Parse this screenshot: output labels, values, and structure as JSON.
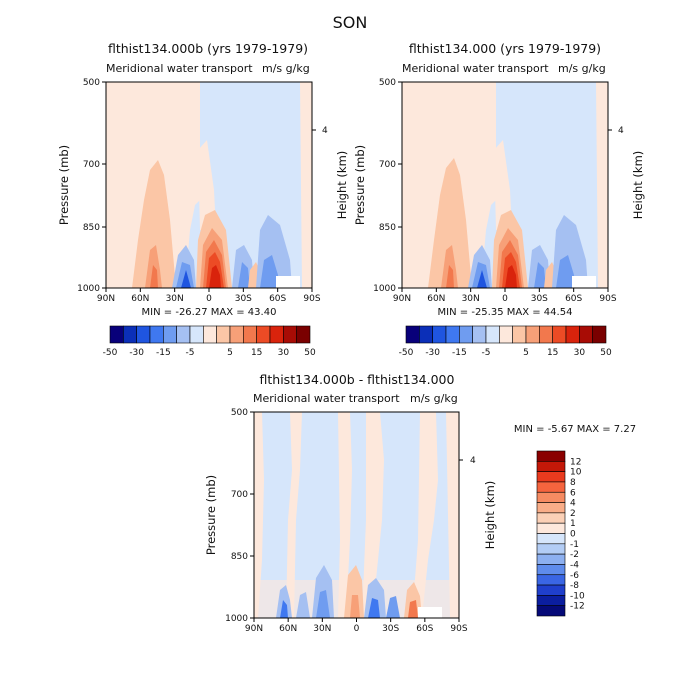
{
  "figure_title": "SON",
  "panels": [
    {
      "title": "flthist134.000b (yrs 1979-1979)",
      "subtitle": "Meridional water transport",
      "units": "m/s g/kg",
      "ylabel": "Pressure (mb)",
      "y2label": "Height (km)",
      "stats": "MIN = -26.27   MAX = 43.40"
    },
    {
      "title": "flthist134.000 (yrs 1979-1979)",
      "subtitle": "Meridional water transport",
      "units": "m/s g/kg",
      "ylabel": "Pressure (mb)",
      "y2label": "Height (km)",
      "stats": "MIN = -25.35   MAX = 44.54"
    },
    {
      "title": "flthist134.000b - flthist134.000",
      "subtitle": "Meridional water transport",
      "units": "m/s g/kg",
      "ylabel": "Pressure (mb)",
      "y2label": "Height (km)",
      "stats": "MIN =   -5.67   MAX =   7.27"
    }
  ],
  "colorbar_main": {
    "labels": [
      "-50",
      "-30",
      "-15",
      "-5",
      "5",
      "15",
      "30",
      "50"
    ],
    "colors": [
      "#08007a",
      "#0b2fb8",
      "#1f55e0",
      "#3f78f0",
      "#6f9cf0",
      "#a5c0f2",
      "#d6e6fb",
      "#fde8dc",
      "#fbc6a6",
      "#f7a078",
      "#f2784d",
      "#ec4b25",
      "#d9230c",
      "#a80c05",
      "#7a0000"
    ]
  },
  "colorbar_diff": {
    "labels": [
      "12",
      "10",
      "8",
      "6",
      "4",
      "2",
      "1",
      "0",
      "-1",
      "-2",
      "-4",
      "-6",
      "-8",
      "-10",
      "-12"
    ],
    "colors": [
      "#8a0000",
      "#c41808",
      "#e93a1e",
      "#f5643e",
      "#f68b62",
      "#f9ad88",
      "#fbd0b6",
      "#fde8dc",
      "#d6e6fb",
      "#b3cdf5",
      "#8db0f0",
      "#5f8cec",
      "#3a66e4",
      "#1f3fcc",
      "#0b1ea0",
      "#050a78"
    ]
  },
  "chart_data": [
    {
      "type": "heatmap",
      "title": "flthist134.000b (yrs 1979-1979)",
      "subtitle": "Meridional water transport m/s g/kg",
      "xlabel": "",
      "ylabel": "Pressure (mb)",
      "y2label": "Height (km)",
      "x_ticks": [
        "90N",
        "60N",
        "30N",
        "0",
        "30S",
        "60S",
        "90S"
      ],
      "y_ticks": [
        "500",
        "700",
        "850",
        "1000"
      ],
      "y2_ticks": [
        "4"
      ],
      "min": -26.27,
      "max": 43.4,
      "features": [
        {
          "lat": 2,
          "p_top": 850,
          "value": 43.4
        },
        {
          "lat": 20,
          "p_top": 900,
          "value": -26.27
        },
        {
          "lat": 45,
          "p_top": 900,
          "value": 8
        },
        {
          "lat": -30,
          "p_top": 880,
          "value": -8
        }
      ]
    },
    {
      "type": "heatmap",
      "title": "flthist134.000 (yrs 1979-1979)",
      "subtitle": "Meridional water transport m/s g/kg",
      "xlabel": "",
      "ylabel": "Pressure (mb)",
      "y2label": "Height (km)",
      "x_ticks": [
        "90N",
        "60N",
        "30N",
        "0",
        "30S",
        "60S",
        "90S"
      ],
      "y_ticks": [
        "500",
        "700",
        "850",
        "1000"
      ],
      "y2_ticks": [
        "4"
      ],
      "min": -25.35,
      "max": 44.54
    },
    {
      "type": "heatmap",
      "title": "flthist134.000b - flthist134.000",
      "subtitle": "Meridional water transport m/s g/kg",
      "xlabel": "",
      "ylabel": "Pressure (mb)",
      "y2label": "Height (km)",
      "x_ticks": [
        "90N",
        "60N",
        "30N",
        "0",
        "30S",
        "60S",
        "90S"
      ],
      "y_ticks": [
        "500",
        "700",
        "850",
        "1000"
      ],
      "y2_ticks": [
        "4"
      ],
      "min": -5.67,
      "max": 7.27
    }
  ]
}
